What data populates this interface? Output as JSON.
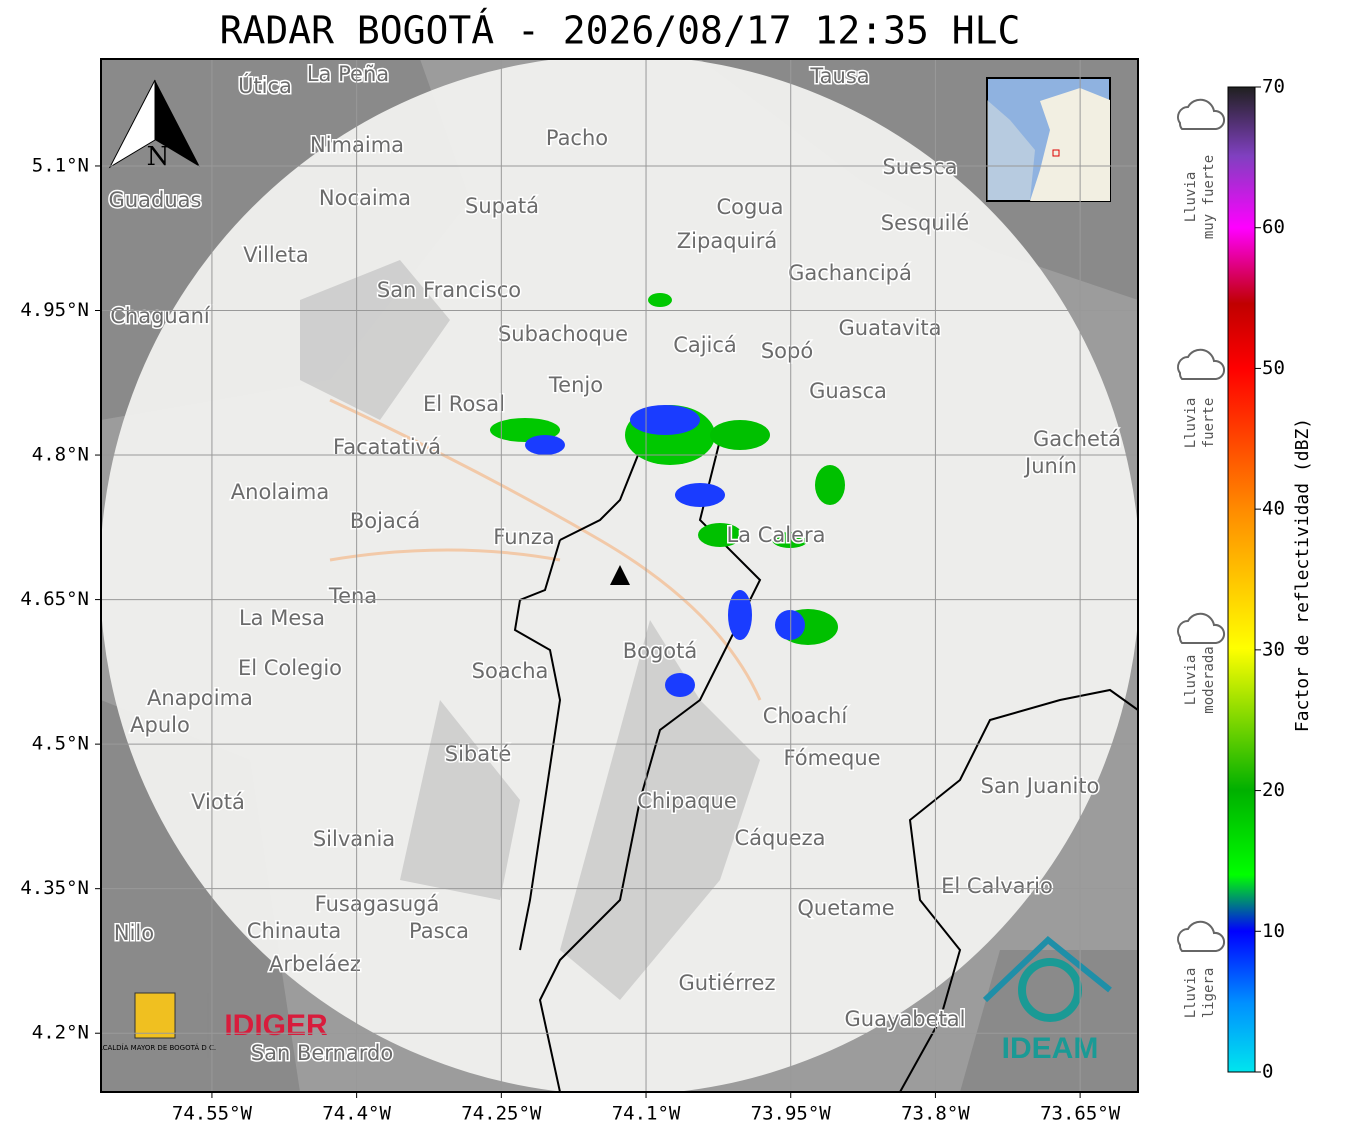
{
  "title": "RADAR BOGOTÁ - 2026/08/17 12:35 HLC",
  "map": {
    "xlim": [
      -74.665,
      -73.59
    ],
    "ylim": [
      4.139,
      5.211
    ],
    "xticks": [
      {
        "value": -74.55,
        "label": "74.55°W"
      },
      {
        "value": -74.4,
        "label": "74.4°W"
      },
      {
        "value": -74.25,
        "label": "74.25°W"
      },
      {
        "value": -74.1,
        "label": "74.1°W"
      },
      {
        "value": -73.95,
        "label": "73.95°W"
      },
      {
        "value": -73.8,
        "label": "73.8°W"
      },
      {
        "value": -73.65,
        "label": "73.65°W"
      }
    ],
    "yticks": [
      {
        "value": 5.1,
        "label": "5.1°N"
      },
      {
        "value": 4.95,
        "label": "4.95°N"
      },
      {
        "value": 4.8,
        "label": "4.8°N"
      },
      {
        "value": 4.65,
        "label": "4.65°N"
      },
      {
        "value": 4.5,
        "label": "4.5°N"
      },
      {
        "value": 4.35,
        "label": "4.35°N"
      },
      {
        "value": 4.2,
        "label": "4.2°N"
      }
    ],
    "north": "N",
    "places": [
      "La Peña",
      "Útica",
      "Tausa",
      "Pacho",
      "Nimaima",
      "Guaduas",
      "Nocaima",
      "Supatá",
      "Suesca",
      "Cogua",
      "Sesquilé",
      "Zipaquirá",
      "Villeta",
      "Gachancipá",
      "San Francisco",
      "Chaguaní",
      "Guatavita",
      "Subachoque",
      "Cajicá",
      "Sopó",
      "Tenjo",
      "Guasca",
      "El Rosal",
      "Facatativá",
      "Gachetá",
      "Junín",
      "Anolaima",
      "Bojacá",
      "Funza",
      "La Calera",
      "Tena",
      "La Mesa",
      "Bogotá",
      "El Colegio",
      "Soacha",
      "Anapoima",
      "Apulo",
      "Choachí",
      "Sibaté",
      "Fómeque",
      "San Juanito",
      "Chipaque",
      "Viotá",
      "Silvania",
      "Cáqueza",
      "El Calvario",
      "Fusagasugá",
      "Quetame",
      "Chinauta",
      "Pasca",
      "Nilo",
      "Arbeláez",
      "Gutiérrez",
      "Guayabetal",
      "San Bernardo"
    ],
    "logos": {
      "alcaldia": "ALCALDÍA MAYOR DE BOGOTÁ D.C.",
      "idiger": "IDIGER",
      "ideam": "IDEAM"
    }
  },
  "colorbar": {
    "label": "Factor de reflectividad (dBZ)",
    "lim": [
      0,
      70
    ],
    "ticks": [
      0,
      10,
      20,
      30,
      40,
      50,
      60,
      70
    ],
    "categories": [
      [
        "Lluvia",
        "muy fuerte"
      ],
      [
        "Lluvia",
        "fuerte"
      ],
      [
        "Lluvia",
        "moderada"
      ],
      [
        "Lluvia",
        "ligera"
      ]
    ]
  }
}
